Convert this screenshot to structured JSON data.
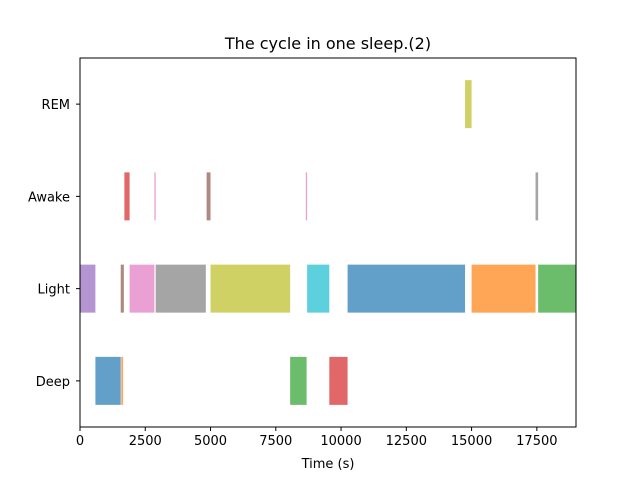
{
  "chart_data": {
    "type": "timeline",
    "title": "The cycle in one sleep.(2)",
    "xlabel": "Time (s)",
    "ylabel": "",
    "xlim": [
      0,
      19000
    ],
    "xticks": [
      0,
      2500,
      5000,
      7500,
      10000,
      12500,
      15000,
      17500
    ],
    "xtick_labels": [
      "0",
      "2500",
      "5000",
      "7500",
      "10000",
      "12500",
      "15000",
      "17500"
    ],
    "categories": [
      "Deep",
      "Light",
      "Awake",
      "REM"
    ],
    "grid": false,
    "segments": [
      {
        "stage": "Light",
        "start": 0,
        "end": 590,
        "color": "#9467bd"
      },
      {
        "stage": "Deep",
        "start": 590,
        "end": 1560,
        "color": "#1f77b4"
      },
      {
        "stage": "Deep",
        "start": 1580,
        "end": 1650,
        "color": "#ff7f0e"
      },
      {
        "stage": "Light",
        "start": 1560,
        "end": 1680,
        "color": "#8c564b"
      },
      {
        "stage": "Awake",
        "start": 1700,
        "end": 1900,
        "color": "#d62728"
      },
      {
        "stage": "Light",
        "start": 1900,
        "end": 2850,
        "color": "#e377c2"
      },
      {
        "stage": "Awake",
        "start": 2850,
        "end": 2900,
        "color": "#e377c2"
      },
      {
        "stage": "Light",
        "start": 2900,
        "end": 4820,
        "color": "#7f7f7f"
      },
      {
        "stage": "Awake",
        "start": 4850,
        "end": 5000,
        "color": "#8c564b"
      },
      {
        "stage": "Light",
        "start": 5000,
        "end": 8050,
        "color": "#bcbd22"
      },
      {
        "stage": "Deep",
        "start": 8050,
        "end": 8680,
        "color": "#2ca02c"
      },
      {
        "stage": "Awake",
        "start": 8650,
        "end": 8700,
        "color": "#e377c2"
      },
      {
        "stage": "Light",
        "start": 8700,
        "end": 9550,
        "color": "#17becf"
      },
      {
        "stage": "Deep",
        "start": 9550,
        "end": 10250,
        "color": "#d62728"
      },
      {
        "stage": "Light",
        "start": 10250,
        "end": 14750,
        "color": "#1f77b4"
      },
      {
        "stage": "REM",
        "start": 14750,
        "end": 15000,
        "color": "#bcbd22"
      },
      {
        "stage": "Light",
        "start": 15000,
        "end": 17450,
        "color": "#ff7f0e"
      },
      {
        "stage": "Awake",
        "start": 17450,
        "end": 17550,
        "color": "#7f7f7f"
      },
      {
        "stage": "Light",
        "start": 17550,
        "end": 19000,
        "color": "#2ca02c"
      }
    ]
  }
}
